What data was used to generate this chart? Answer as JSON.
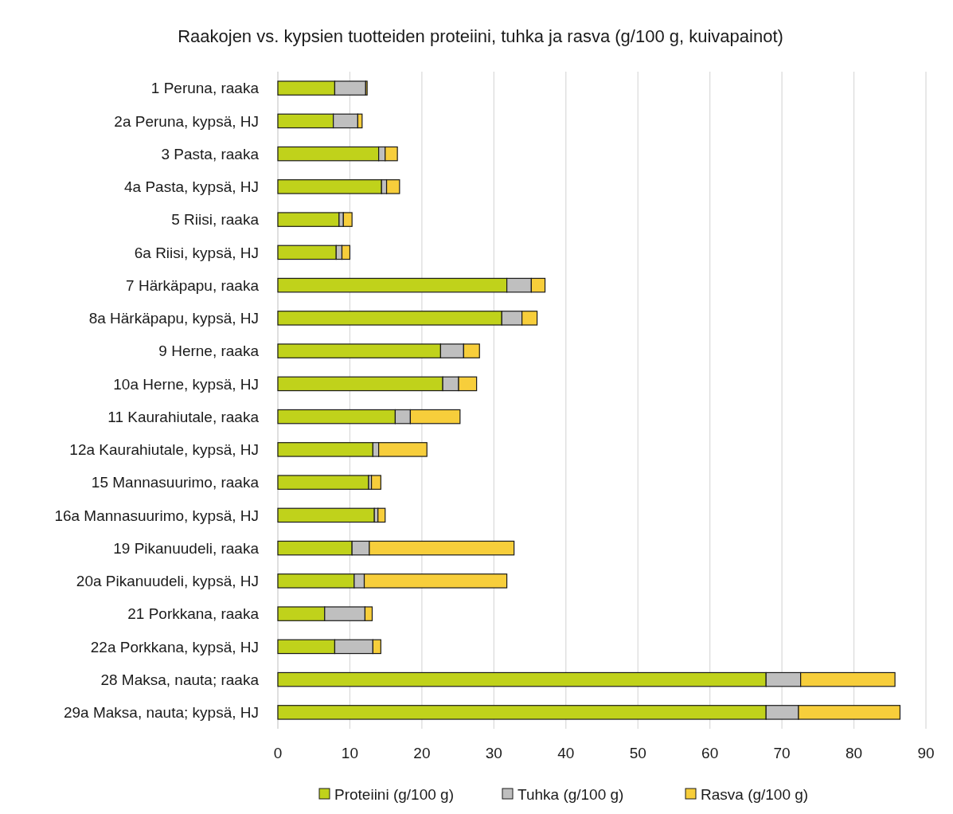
{
  "chart_data": {
    "type": "bar",
    "orientation": "horizontal",
    "stacked": true,
    "title": "Raakojen vs. kypsien tuotteiden proteiini, tuhka ja rasva (g/100 g, kuivapainot)",
    "categories": [
      "1 Peruna, raaka",
      "2a Peruna, kypsä, HJ",
      "3 Pasta, raaka",
      "4a Pasta, kypsä, HJ",
      "5 Riisi, raaka",
      "6a Riisi, kypsä, HJ",
      "7 Härkäpapu, raaka",
      "8a Härkäpapu, kypsä, HJ",
      "9 Herne, raaka",
      "10a Herne, kypsä, HJ",
      "11 Kaurahiutale, raaka",
      "12a Kaurahiutale, kypsä, HJ",
      "15 Mannasuurimo, raaka",
      "16a Mannasuurimo, kypsä, HJ",
      "19 Pikanuudeli, raaka",
      "20a Pikanuudeli, kypsä, HJ",
      "21 Porkkana, raaka",
      "22a Porkkana, kypsä, HJ",
      "28 Maksa, nauta; raaka",
      "29a Maksa, nauta; kypsä, HJ"
    ],
    "series": [
      {
        "name": "Proteiini (g/100 g)",
        "color": "#c0d21b",
        "values": [
          7.9,
          7.7,
          14.0,
          14.4,
          8.5,
          8.1,
          31.8,
          31.1,
          22.6,
          22.9,
          16.3,
          13.2,
          12.6,
          13.4,
          10.3,
          10.6,
          6.5,
          7.9,
          67.8,
          67.8
        ]
      },
      {
        "name": "Tuhka (g/100 g)",
        "color": "#bfbfbf",
        "values": [
          4.3,
          3.4,
          0.9,
          0.7,
          0.6,
          0.8,
          3.4,
          2.8,
          3.2,
          2.2,
          2.1,
          0.8,
          0.4,
          0.5,
          2.4,
          1.4,
          5.6,
          5.3,
          4.8,
          4.5
        ]
      },
      {
        "name": "Rasva (g/100 g)",
        "color": "#f7ce3b",
        "values": [
          0.2,
          0.6,
          1.7,
          1.8,
          1.2,
          1.1,
          1.9,
          2.1,
          2.2,
          2.5,
          6.9,
          6.7,
          1.3,
          1.0,
          20.1,
          19.8,
          1.0,
          1.1,
          13.1,
          14.1
        ]
      }
    ],
    "xlim": [
      0,
      90
    ],
    "xticks": [
      0,
      10,
      20,
      30,
      40,
      50,
      60,
      70,
      80,
      90
    ],
    "grid": "x",
    "legend": "bottom"
  }
}
